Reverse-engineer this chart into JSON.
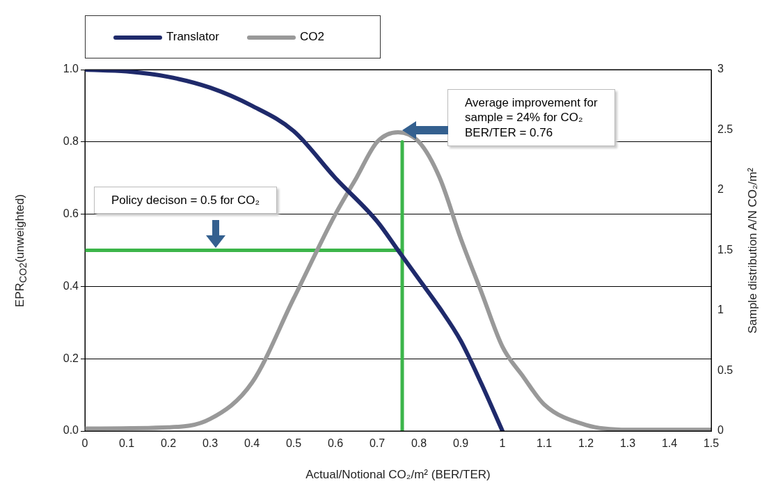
{
  "chart_data": {
    "type": "line",
    "xlabel": "Actual/Notional  CO₂/m² (BER/TER)",
    "ylabel": "EPR$_{CO2}$(unweighted)",
    "y2label": "Sample distribution A/N CO₂/m²",
    "xlim": [
      0,
      1.5
    ],
    "xticks": [
      0,
      0.1,
      0.2,
      0.3,
      0.4,
      0.5,
      0.6,
      0.7,
      0.8,
      0.9,
      1,
      1.1,
      1.2,
      1.3,
      1.4,
      1.5
    ],
    "ylim": [
      0,
      1
    ],
    "yticks": [
      {
        "value": 0,
        "label": "0.0"
      },
      0.2,
      0.4,
      0.6,
      0.8,
      {
        "value": 1,
        "label": "1.0"
      }
    ],
    "y2lim": [
      0,
      3
    ],
    "y2ticks": [
      0,
      0.5,
      1,
      1.5,
      2,
      2.5,
      3
    ],
    "grid": "y",
    "legend": "top left",
    "marker": "none",
    "line_style": "solid",
    "annotations": [
      "Policy decison = 0.5 for CO₂",
      "Average improvement for\nsample = 24% for CO₂\nBER/TER = 0.76"
    ],
    "series": [
      {
        "name": "Translator",
        "color": "#1f2a6b",
        "x": [
          0,
          0.1,
          0.2,
          0.3,
          0.4,
          0.5,
          0.6,
          0.7,
          0.75,
          0.8,
          0.85,
          0.9,
          0.95,
          1
        ],
        "values": [
          1,
          0.995,
          0.98,
          0.95,
          0.9,
          0.83,
          0.7,
          0.58,
          0.5,
          0.42,
          0.34,
          0.25,
          0.13,
          0
        ]
      },
      {
        "name": "CO2",
        "color": "#999999",
        "axis": "y2",
        "x": [
          0,
          0.2,
          0.3,
          0.4,
          0.5,
          0.6,
          0.65,
          0.7,
          0.75,
          0.8,
          0.85,
          0.9,
          0.95,
          1,
          1.05,
          1.1,
          1.2,
          1.3,
          1.5
        ],
        "values": [
          0.02,
          0.03,
          0.1,
          0.4,
          1.1,
          1.8,
          2.1,
          2.4,
          2.48,
          2.4,
          2.1,
          1.6,
          1.15,
          0.7,
          0.45,
          0.22,
          0.05,
          0.01,
          0.01
        ]
      },
      {
        "color": "#3cb54a",
        "x": [
          0,
          0.76
        ],
        "values": [
          0.5,
          0.5
        ]
      },
      {
        "color": "#3cb54a",
        "x": [
          0.76,
          0.76
        ],
        "values": [
          0,
          0.8
        ]
      }
    ]
  }
}
